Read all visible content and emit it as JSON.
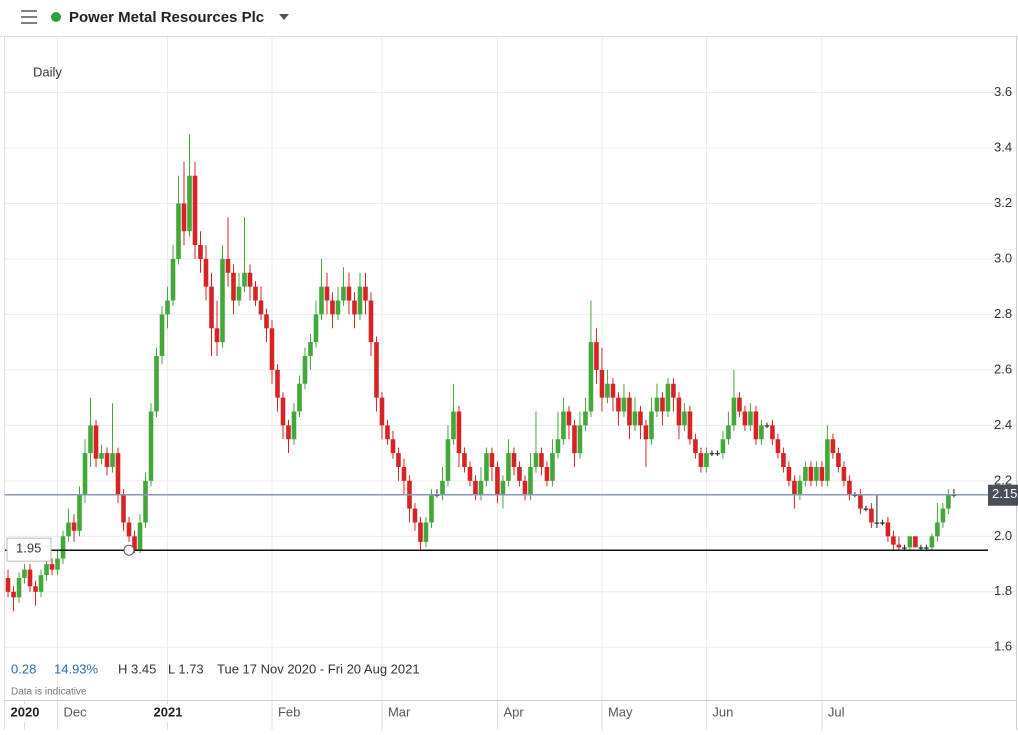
{
  "chart_data": {
    "type": "candlestick",
    "title": "Power Metal Resources Plc",
    "interval": "Daily",
    "stats": [
      "0.28",
      "14.93%",
      "H 3.45",
      "L 1.73"
    ],
    "range": "Tue 17 Nov 2020 - Fri 20 Aug 2021",
    "note": "Data is indicative",
    "up_color": "#43a83a",
    "down_color": "#d62424",
    "flat_color": "#222222",
    "ylim": [
      1.41,
      3.8
    ],
    "yticks": [
      1.6,
      1.8,
      {
        "value": 2,
        "label": "2.0"
      },
      2.2,
      2.4,
      2.6,
      2.8,
      {
        "value": 3,
        "label": "3.0"
      },
      3.2,
      3.4,
      3.6
    ],
    "xlim": [
      -0.55,
      178.2
    ],
    "xticks": [
      {
        "value": 3,
        "label": "2020"
      },
      {
        "value": 9,
        "label": "Dec"
      },
      {
        "value": 29,
        "label": "2021"
      },
      {
        "value": 48,
        "label": "Feb"
      },
      {
        "value": 68,
        "label": "Mar"
      },
      {
        "value": 89,
        "label": "Apr"
      },
      {
        "value": 108,
        "label": "May"
      },
      {
        "value": 127,
        "label": "Jun"
      },
      {
        "value": 148,
        "label": "Jul"
      }
    ],
    "last_price": {
      "value": 2.15,
      "label": "2.15"
    },
    "level": {
      "value": 1.95,
      "label": "1.95"
    },
    "ohlc": [
      [
        1.85,
        1.88,
        1.78,
        1.8
      ],
      [
        1.8,
        1.82,
        1.73,
        1.78
      ],
      [
        1.78,
        1.87,
        1.76,
        1.85
      ],
      [
        1.85,
        1.9,
        1.83,
        1.88
      ],
      [
        1.88,
        1.9,
        1.8,
        1.82
      ],
      [
        1.82,
        1.84,
        1.75,
        1.8
      ],
      [
        1.8,
        1.88,
        1.78,
        1.86
      ],
      [
        1.86,
        1.92,
        1.84,
        1.9
      ],
      [
        1.9,
        1.92,
        1.86,
        1.88
      ],
      [
        1.88,
        1.95,
        1.86,
        1.92
      ],
      [
        1.92,
        2.02,
        1.9,
        2.0
      ],
      [
        2.0,
        2.1,
        1.98,
        2.05
      ],
      [
        2.05,
        2.08,
        1.98,
        2.02
      ],
      [
        2.02,
        2.18,
        2.0,
        2.15
      ],
      [
        2.15,
        2.35,
        2.12,
        2.3
      ],
      [
        2.3,
        2.5,
        2.25,
        2.4
      ],
      [
        2.4,
        2.42,
        2.25,
        2.28
      ],
      [
        2.28,
        2.33,
        2.26,
        2.3
      ],
      [
        2.3,
        2.32,
        2.22,
        2.25
      ],
      [
        2.25,
        2.48,
        2.23,
        2.3
      ],
      [
        2.3,
        2.32,
        2.12,
        2.15
      ],
      [
        2.15,
        2.17,
        2.02,
        2.05
      ],
      [
        2.05,
        2.07,
        1.98,
        2.0
      ],
      [
        2.0,
        2.02,
        1.94,
        1.95
      ],
      [
        1.95,
        2.08,
        1.94,
        2.05
      ],
      [
        2.05,
        2.23,
        2.03,
        2.2
      ],
      [
        2.2,
        2.48,
        2.18,
        2.45
      ],
      [
        2.45,
        2.68,
        2.43,
        2.65
      ],
      [
        2.65,
        2.83,
        2.62,
        2.8
      ],
      [
        2.8,
        2.9,
        2.75,
        2.85
      ],
      [
        2.85,
        3.05,
        2.83,
        3.0
      ],
      [
        3.0,
        3.3,
        2.98,
        3.2
      ],
      [
        3.2,
        3.35,
        3.05,
        3.1
      ],
      [
        3.1,
        3.45,
        3.08,
        3.3
      ],
      [
        3.3,
        3.35,
        3.0,
        3.05
      ],
      [
        3.05,
        3.1,
        2.95,
        3.0
      ],
      [
        3.0,
        3.05,
        2.85,
        2.9
      ],
      [
        2.9,
        2.95,
        2.65,
        2.75
      ],
      [
        2.75,
        2.85,
        2.65,
        2.7
      ],
      [
        2.7,
        3.05,
        2.68,
        3.0
      ],
      [
        3.0,
        3.15,
        2.9,
        2.95
      ],
      [
        2.95,
        2.98,
        2.8,
        2.85
      ],
      [
        2.85,
        2.95,
        2.83,
        2.9
      ],
      [
        2.9,
        3.15,
        2.88,
        2.95
      ],
      [
        2.95,
        2.98,
        2.85,
        2.9
      ],
      [
        2.9,
        2.92,
        2.83,
        2.85
      ],
      [
        2.85,
        2.9,
        2.78,
        2.8
      ],
      [
        2.8,
        2.82,
        2.7,
        2.75
      ],
      [
        2.75,
        2.78,
        2.55,
        2.6
      ],
      [
        2.6,
        2.62,
        2.45,
        2.5
      ],
      [
        2.5,
        2.52,
        2.35,
        2.4
      ],
      [
        2.4,
        2.42,
        2.3,
        2.35
      ],
      [
        2.35,
        2.48,
        2.33,
        2.45
      ],
      [
        2.45,
        2.58,
        2.43,
        2.55
      ],
      [
        2.55,
        2.68,
        2.53,
        2.65
      ],
      [
        2.65,
        2.73,
        2.6,
        2.7
      ],
      [
        2.7,
        2.85,
        2.68,
        2.8
      ],
      [
        2.8,
        3.0,
        2.78,
        2.9
      ],
      [
        2.9,
        2.95,
        2.8,
        2.85
      ],
      [
        2.85,
        2.88,
        2.75,
        2.8
      ],
      [
        2.8,
        2.9,
        2.78,
        2.85
      ],
      [
        2.85,
        2.97,
        2.83,
        2.9
      ],
      [
        2.9,
        2.95,
        2.8,
        2.85
      ],
      [
        2.85,
        2.88,
        2.75,
        2.8
      ],
      [
        2.8,
        2.95,
        2.78,
        2.9
      ],
      [
        2.9,
        2.95,
        2.8,
        2.85
      ],
      [
        2.85,
        2.88,
        2.65,
        2.7
      ],
      [
        2.7,
        2.72,
        2.45,
        2.5
      ],
      [
        2.5,
        2.52,
        2.35,
        2.4
      ],
      [
        2.4,
        2.42,
        2.33,
        2.35
      ],
      [
        2.35,
        2.38,
        2.28,
        2.3
      ],
      [
        2.3,
        2.32,
        2.2,
        2.25
      ],
      [
        2.25,
        2.28,
        2.15,
        2.2
      ],
      [
        2.2,
        2.22,
        2.05,
        2.1
      ],
      [
        2.1,
        2.12,
        2.02,
        2.05
      ],
      [
        2.05,
        2.07,
        1.95,
        1.98
      ],
      [
        1.98,
        2.07,
        1.96,
        2.05
      ],
      [
        2.05,
        2.17,
        2.03,
        2.15
      ],
      [
        2.15,
        2.17,
        2.14,
        2.15
      ],
      [
        2.15,
        2.25,
        2.13,
        2.2
      ],
      [
        2.2,
        2.4,
        2.18,
        2.35
      ],
      [
        2.35,
        2.55,
        2.33,
        2.45
      ],
      [
        2.45,
        2.47,
        2.25,
        2.3
      ],
      [
        2.3,
        2.32,
        2.23,
        2.25
      ],
      [
        2.25,
        2.27,
        2.18,
        2.2
      ],
      [
        2.2,
        2.22,
        2.13,
        2.15
      ],
      [
        2.15,
        2.25,
        2.13,
        2.2
      ],
      [
        2.2,
        2.32,
        2.18,
        2.3
      ],
      [
        2.3,
        2.32,
        2.2,
        2.25
      ],
      [
        2.25,
        2.27,
        2.12,
        2.15
      ],
      [
        2.15,
        2.22,
        2.1,
        2.2
      ],
      [
        2.2,
        2.35,
        2.18,
        2.3
      ],
      [
        2.3,
        2.32,
        2.22,
        2.25
      ],
      [
        2.25,
        2.27,
        2.18,
        2.2
      ],
      [
        2.2,
        2.22,
        2.13,
        2.15
      ],
      [
        2.15,
        2.3,
        2.13,
        2.25
      ],
      [
        2.25,
        2.45,
        2.23,
        2.3
      ],
      [
        2.3,
        2.32,
        2.22,
        2.25
      ],
      [
        2.25,
        2.27,
        2.18,
        2.2
      ],
      [
        2.2,
        2.35,
        2.18,
        2.3
      ],
      [
        2.3,
        2.45,
        2.28,
        2.35
      ],
      [
        2.35,
        2.5,
        2.33,
        2.45
      ],
      [
        2.45,
        2.47,
        2.35,
        2.4
      ],
      [
        2.4,
        2.42,
        2.25,
        2.3
      ],
      [
        2.3,
        2.45,
        2.28,
        2.4
      ],
      [
        2.4,
        2.5,
        2.38,
        2.45
      ],
      [
        2.45,
        2.85,
        2.43,
        2.7
      ],
      [
        2.7,
        2.75,
        2.55,
        2.6
      ],
      [
        2.6,
        2.68,
        2.45,
        2.5
      ],
      [
        2.5,
        2.6,
        2.48,
        2.55
      ],
      [
        2.55,
        2.57,
        2.45,
        2.5
      ],
      [
        2.5,
        2.52,
        2.4,
        2.45
      ],
      [
        2.45,
        2.55,
        2.43,
        2.5
      ],
      [
        2.5,
        2.52,
        2.35,
        2.4
      ],
      [
        2.4,
        2.5,
        2.38,
        2.45
      ],
      [
        2.45,
        2.47,
        2.35,
        2.4
      ],
      [
        2.4,
        2.42,
        2.25,
        2.35
      ],
      [
        2.35,
        2.5,
        2.33,
        2.45
      ],
      [
        2.45,
        2.55,
        2.43,
        2.5
      ],
      [
        2.5,
        2.52,
        2.4,
        2.45
      ],
      [
        2.45,
        2.57,
        2.43,
        2.55
      ],
      [
        2.55,
        2.57,
        2.45,
        2.5
      ],
      [
        2.5,
        2.52,
        2.35,
        2.4
      ],
      [
        2.4,
        2.48,
        2.38,
        2.45
      ],
      [
        2.45,
        2.47,
        2.33,
        2.35
      ],
      [
        2.35,
        2.37,
        2.28,
        2.3
      ],
      [
        2.3,
        2.32,
        2.23,
        2.25
      ],
      [
        2.25,
        2.32,
        2.23,
        2.3
      ],
      [
        2.3,
        2.31,
        2.29,
        2.3
      ],
      [
        2.3,
        2.31,
        2.29,
        2.3
      ],
      [
        2.3,
        2.38,
        2.28,
        2.35
      ],
      [
        2.35,
        2.45,
        2.33,
        2.4
      ],
      [
        2.4,
        2.6,
        2.38,
        2.5
      ],
      [
        2.5,
        2.52,
        2.43,
        2.45
      ],
      [
        2.45,
        2.47,
        2.38,
        2.4
      ],
      [
        2.4,
        2.48,
        2.38,
        2.45
      ],
      [
        2.45,
        2.47,
        2.33,
        2.35
      ],
      [
        2.35,
        2.42,
        2.33,
        2.4
      ],
      [
        2.4,
        2.41,
        2.39,
        2.4
      ],
      [
        2.4,
        2.42,
        2.33,
        2.35
      ],
      [
        2.35,
        2.37,
        2.28,
        2.3
      ],
      [
        2.3,
        2.32,
        2.23,
        2.25
      ],
      [
        2.25,
        2.27,
        2.18,
        2.2
      ],
      [
        2.2,
        2.22,
        2.1,
        2.15
      ],
      [
        2.15,
        2.22,
        2.13,
        2.2
      ],
      [
        2.2,
        2.27,
        2.18,
        2.25
      ],
      [
        2.25,
        2.27,
        2.18,
        2.2
      ],
      [
        2.2,
        2.27,
        2.18,
        2.25
      ],
      [
        2.25,
        2.27,
        2.18,
        2.2
      ],
      [
        2.2,
        2.4,
        2.18,
        2.35
      ],
      [
        2.35,
        2.37,
        2.28,
        2.3
      ],
      [
        2.3,
        2.32,
        2.23,
        2.25
      ],
      [
        2.25,
        2.27,
        2.18,
        2.2
      ],
      [
        2.2,
        2.22,
        2.13,
        2.15
      ],
      [
        2.15,
        2.16,
        2.14,
        2.15
      ],
      [
        2.15,
        2.17,
        2.08,
        2.1
      ],
      [
        2.1,
        2.11,
        2.09,
        2.1
      ],
      [
        2.1,
        2.12,
        2.03,
        2.05
      ],
      [
        2.05,
        2.15,
        2.03,
        2.05
      ],
      [
        2.05,
        2.06,
        2.04,
        2.05
      ],
      [
        2.05,
        2.07,
        1.98,
        2.0
      ],
      [
        2.0,
        2.02,
        1.95,
        1.97
      ],
      [
        1.97,
        2.0,
        1.95,
        1.96
      ],
      [
        1.96,
        1.97,
        1.95,
        1.96
      ],
      [
        1.96,
        2.0,
        1.95,
        2.0
      ],
      [
        2.0,
        2.0,
        1.96,
        1.96
      ],
      [
        1.96,
        1.97,
        1.95,
        1.96
      ],
      [
        1.96,
        1.97,
        1.95,
        1.96
      ],
      [
        1.96,
        2.01,
        1.95,
        2.0
      ],
      [
        2.0,
        2.12,
        1.98,
        2.05
      ],
      [
        2.05,
        2.12,
        2.03,
        2.1
      ],
      [
        2.1,
        2.17,
        2.08,
        2.15
      ],
      [
        2.15,
        2.17,
        2.14,
        2.15
      ]
    ]
  }
}
